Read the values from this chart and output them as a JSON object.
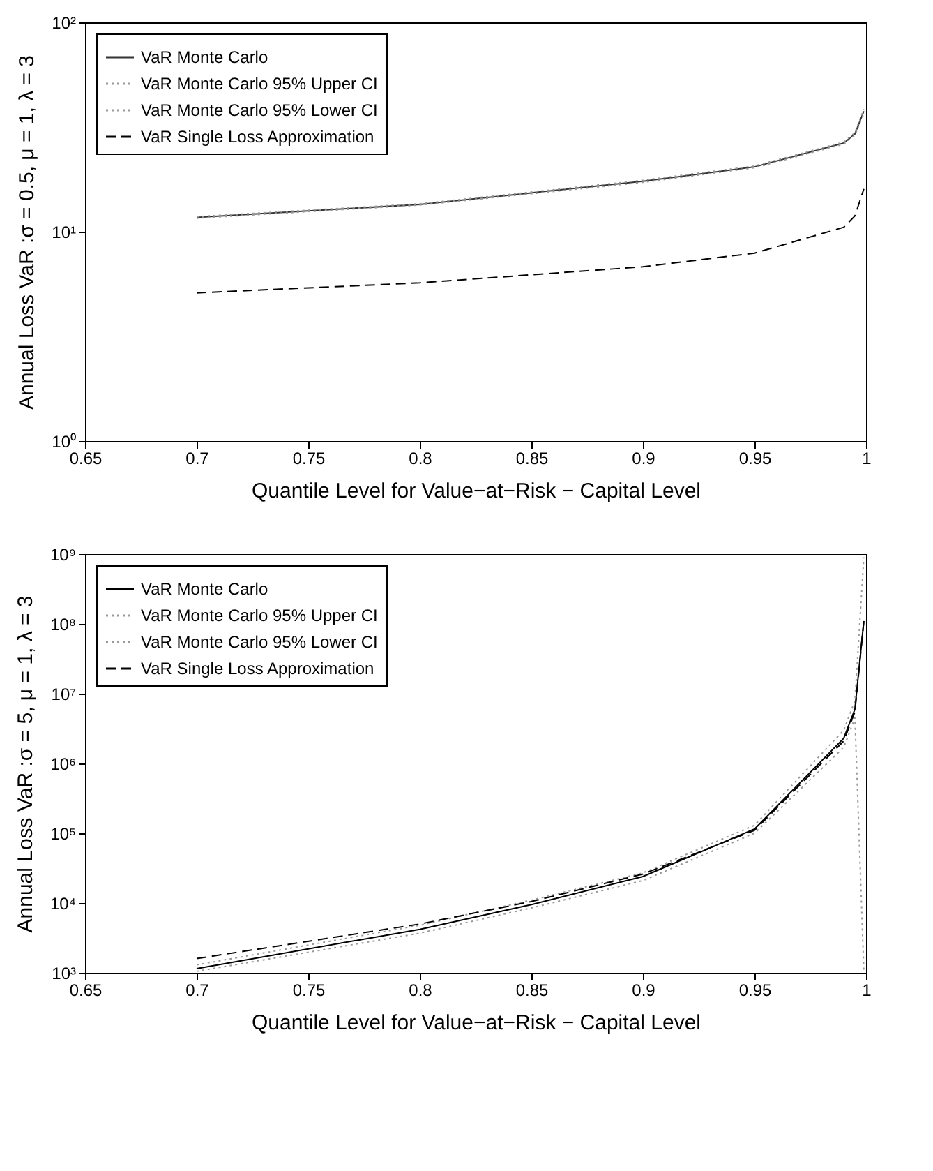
{
  "chart_data": [
    {
      "type": "line",
      "xlabel": "Quantile Level for Value−at−Risk − Capital Level",
      "ylabel": "Annual Loss VaR :σ = 0.5, μ = 1, λ = 3",
      "log": "y",
      "legend": "top left",
      "x": [
        0.7,
        0.8,
        0.9,
        0.95,
        0.99,
        0.995,
        0.999
      ],
      "xlim": [
        0.65,
        1
      ],
      "xticks": [
        0.65,
        0.7,
        0.75,
        0.8,
        0.85,
        0.9,
        0.95,
        1
      ],
      "ylim": [
        1,
        100
      ],
      "yticks": [
        {
          "value": 1,
          "label": "10⁰"
        },
        {
          "value": 10,
          "label": "10¹"
        },
        {
          "value": 100,
          "label": "10²"
        }
      ],
      "series": [
        {
          "name": "VaR Monte Carlo",
          "color": "#333333",
          "line_style": "solid",
          "values": [
            11.7,
            13.5,
            17.4,
            20.4,
            26.5,
            29.3,
            37.6
          ]
        },
        {
          "name": "VaR Monte Carlo 95% Upper CI",
          "color": "#999999",
          "line_style": "dotted",
          "values": [
            11.8,
            13.6,
            17.6,
            20.6,
            26.8,
            29.7,
            38.5
          ]
        },
        {
          "name": "VaR Monte Carlo 95% Lower CI",
          "color": "#999999",
          "line_style": "dotted",
          "values": [
            11.6,
            13.4,
            17.2,
            20.2,
            26.2,
            28.9,
            36.7
          ]
        },
        {
          "name": "VaR Single Loss Approximation",
          "color": "#000000",
          "line_style": "dashed",
          "values": [
            5.1,
            5.7,
            6.8,
            7.9,
            10.5,
            11.9,
            16.0
          ]
        }
      ]
    },
    {
      "type": "line",
      "xlabel": "Quantile Level for Value−at−Risk − Capital Level",
      "ylabel": "Annual Loss VaR :σ = 5, μ = 1, λ = 3",
      "log": "y",
      "legend": "top left",
      "x": [
        0.7,
        0.8,
        0.85,
        0.9,
        0.95,
        0.99,
        0.995,
        0.999
      ],
      "xlim": [
        0.65,
        1
      ],
      "xticks": [
        0.65,
        0.7,
        0.75,
        0.8,
        0.85,
        0.9,
        0.95,
        1
      ],
      "ylim": [
        1000,
        1000000000
      ],
      "yticks": [
        {
          "value": 1000,
          "label": "10³"
        },
        {
          "value": 10000,
          "label": "10⁴"
        },
        {
          "value": 100000,
          "label": "10⁵"
        },
        {
          "value": 1000000,
          "label": "10⁶"
        },
        {
          "value": 10000000,
          "label": "10⁷"
        },
        {
          "value": 100000000,
          "label": "10⁸"
        },
        {
          "value": 1000000000,
          "label": "10⁹"
        }
      ],
      "series": [
        {
          "name": "VaR Monte Carlo",
          "color": "#000000",
          "line_style": "solid",
          "values": [
            1150,
            4200,
            9500,
            24000,
            115000,
            2300000,
            6000000,
            110000000
          ]
        },
        {
          "name": "VaR Monte Carlo 95% Upper CI",
          "color": "#999999",
          "line_style": "dotted",
          "values": [
            1300,
            4800,
            11000,
            27000,
            130000,
            3000000,
            8000000,
            900000000
          ]
        },
        {
          "name": "VaR Monte Carlo 95% Lower CI",
          "color": "#999999",
          "line_style": "dotted",
          "values": [
            1050,
            3700,
            8500,
            21000,
            100000,
            1700000,
            4500000,
            1100
          ]
        },
        {
          "name": "VaR Single Loss Approximation",
          "color": "#000000",
          "line_style": "dashed",
          "values": [
            1600,
            5000,
            10500,
            26000,
            110000,
            2100000,
            5500000,
            110000000
          ]
        }
      ]
    }
  ]
}
